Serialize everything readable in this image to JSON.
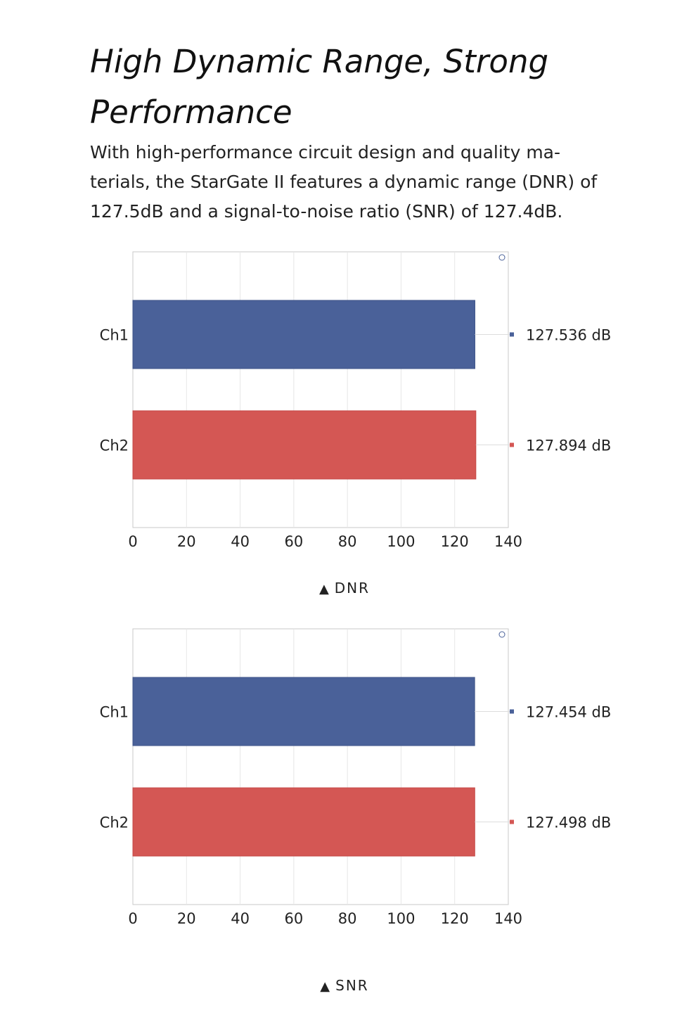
{
  "header": {
    "title": "High Dynamic Range, Strong Performance",
    "description": "With high-performance circuit design and quality ma-terials, the StarGate II features a dynamic range (DNR) of 127.5dB and a signal-to-noise ratio (SNR) of 127.4dB."
  },
  "colors": {
    "ch1": "#4a6199",
    "ch2": "#d45754",
    "grid": "#e6e6e6",
    "frame": "#c8c8c8"
  },
  "chart_data": [
    {
      "type": "bar",
      "orientation": "horizontal",
      "title": "",
      "caption": "DNR",
      "categories": [
        "Ch1",
        "Ch2"
      ],
      "values": [
        127.536,
        127.894
      ],
      "value_labels": [
        "127.536 dB",
        "127.894 dB"
      ],
      "xlim": [
        0,
        140
      ],
      "xticks": [
        "0",
        "20",
        "40",
        "60",
        "80",
        "100",
        "120",
        "140"
      ],
      "grid": true
    },
    {
      "type": "bar",
      "orientation": "horizontal",
      "title": "",
      "caption": "SNR",
      "categories": [
        "Ch1",
        "Ch2"
      ],
      "values": [
        127.454,
        127.498
      ],
      "value_labels": [
        "127.454 dB",
        "127.498 dB"
      ],
      "xlim": [
        0,
        140
      ],
      "xticks": [
        "0",
        "20",
        "40",
        "60",
        "80",
        "100",
        "120",
        "140"
      ],
      "grid": true
    }
  ]
}
